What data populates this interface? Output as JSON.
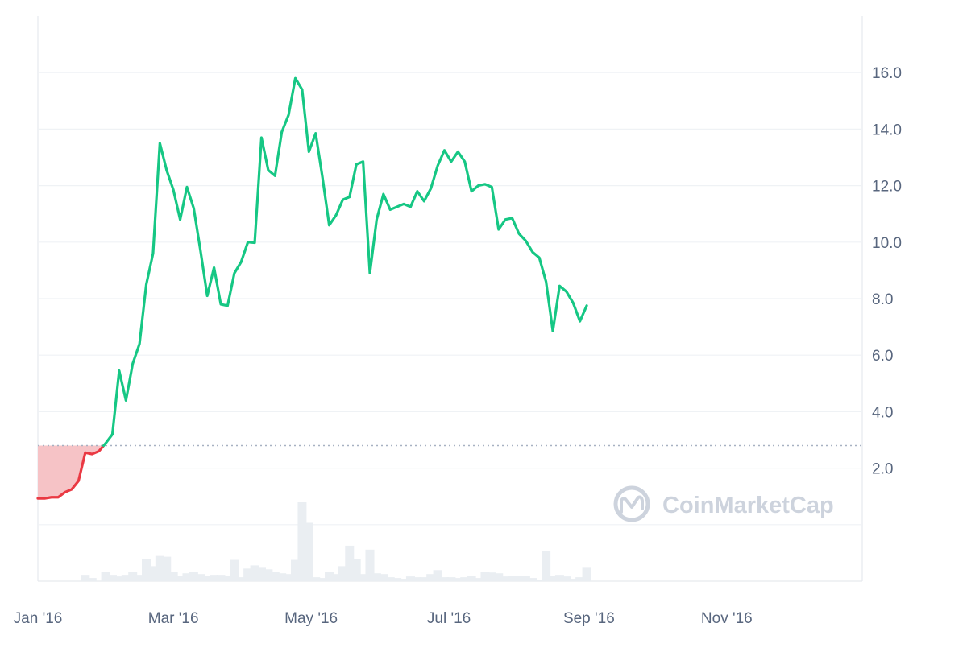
{
  "chart_data": {
    "type": "line",
    "colors": {
      "up": "#16c784",
      "down": "#ea3943",
      "down_fill": "#f6c3c6",
      "volume": "#eaeef2",
      "baseline": "#a7b1c2"
    },
    "y_ticks": [
      "2.0",
      "4.0",
      "6.0",
      "8.0",
      "10.0",
      "12.0",
      "14.0",
      "16.0"
    ],
    "ylim": [
      -2.0,
      18.0
    ],
    "x_ticks": [
      {
        "value": "2016-01-01",
        "label": "Jan '16"
      },
      {
        "value": "2016-03-01",
        "label": "Mar '16"
      },
      {
        "value": "2016-05-01",
        "label": "May '16"
      },
      {
        "value": "2016-07-01",
        "label": "Jul '16"
      },
      {
        "value": "2016-09-01",
        "label": "Sep '16"
      },
      {
        "value": "2016-11-01",
        "label": "Nov '16"
      }
    ],
    "xlim": [
      "2016-01-01",
      "2016-12-31"
    ],
    "baseline_value": 2.8,
    "grid": true,
    "price_series": [
      [
        "2016-01-01",
        0.93
      ],
      [
        "2016-01-04",
        0.93
      ],
      [
        "2016-01-07",
        0.97
      ],
      [
        "2016-01-10",
        0.97
      ],
      [
        "2016-01-13",
        1.15
      ],
      [
        "2016-01-16",
        1.25
      ],
      [
        "2016-01-19",
        1.55
      ],
      [
        "2016-01-22",
        2.55
      ],
      [
        "2016-01-25",
        2.5
      ],
      [
        "2016-01-28",
        2.6
      ],
      [
        "2016-01-31",
        2.88
      ],
      [
        "2016-02-03",
        3.2
      ],
      [
        "2016-02-06",
        5.45
      ],
      [
        "2016-02-09",
        4.4
      ],
      [
        "2016-02-12",
        5.7
      ],
      [
        "2016-02-15",
        6.4
      ],
      [
        "2016-02-18",
        8.5
      ],
      [
        "2016-02-21",
        9.6
      ],
      [
        "2016-02-24",
        13.5
      ],
      [
        "2016-02-27",
        12.55
      ],
      [
        "2016-03-01",
        11.85
      ],
      [
        "2016-03-04",
        10.8
      ],
      [
        "2016-03-07",
        11.95
      ],
      [
        "2016-03-10",
        11.2
      ],
      [
        "2016-03-13",
        9.7
      ],
      [
        "2016-03-16",
        8.1
      ],
      [
        "2016-03-19",
        9.1
      ],
      [
        "2016-03-22",
        7.8
      ],
      [
        "2016-03-25",
        7.75
      ],
      [
        "2016-03-28",
        8.9
      ],
      [
        "2016-03-31",
        9.3
      ],
      [
        "2016-04-03",
        10.0
      ],
      [
        "2016-04-06",
        9.98
      ],
      [
        "2016-04-09",
        13.7
      ],
      [
        "2016-04-12",
        12.55
      ],
      [
        "2016-04-15",
        12.35
      ],
      [
        "2016-04-18",
        13.9
      ],
      [
        "2016-04-21",
        14.5
      ],
      [
        "2016-04-24",
        15.8
      ],
      [
        "2016-04-27",
        15.4
      ],
      [
        "2016-04-30",
        13.2
      ],
      [
        "2016-05-03",
        13.85
      ],
      [
        "2016-05-06",
        12.3
      ],
      [
        "2016-05-09",
        10.6
      ],
      [
        "2016-05-12",
        10.95
      ],
      [
        "2016-05-15",
        11.5
      ],
      [
        "2016-05-18",
        11.6
      ],
      [
        "2016-05-21",
        12.75
      ],
      [
        "2016-05-24",
        12.85
      ],
      [
        "2016-05-27",
        8.9
      ],
      [
        "2016-05-30",
        10.8
      ],
      [
        "2016-06-02",
        11.7
      ],
      [
        "2016-06-05",
        11.15
      ],
      [
        "2016-06-08",
        11.25
      ],
      [
        "2016-06-11",
        11.35
      ],
      [
        "2016-06-14",
        11.25
      ],
      [
        "2016-06-17",
        11.8
      ],
      [
        "2016-06-20",
        11.45
      ],
      [
        "2016-06-23",
        11.9
      ],
      [
        "2016-06-26",
        12.7
      ],
      [
        "2016-06-29",
        13.25
      ],
      [
        "2016-07-02",
        12.85
      ],
      [
        "2016-07-05",
        13.2
      ],
      [
        "2016-07-08",
        12.85
      ],
      [
        "2016-07-11",
        11.8
      ],
      [
        "2016-07-14",
        12.0
      ],
      [
        "2016-07-17",
        12.05
      ],
      [
        "2016-07-20",
        11.95
      ],
      [
        "2016-07-23",
        10.45
      ],
      [
        "2016-07-26",
        10.8
      ],
      [
        "2016-07-29",
        10.85
      ],
      [
        "2016-08-01",
        10.3
      ],
      [
        "2016-08-04",
        10.05
      ],
      [
        "2016-08-07",
        9.65
      ],
      [
        "2016-08-10",
        9.45
      ],
      [
        "2016-08-13",
        8.6
      ],
      [
        "2016-08-16",
        6.85
      ],
      [
        "2016-08-19",
        8.45
      ],
      [
        "2016-08-22",
        8.25
      ],
      [
        "2016-08-25",
        7.85
      ],
      [
        "2016-08-28",
        7.2
      ],
      [
        "2016-08-31",
        7.75
      ]
    ],
    "volume_series": [
      [
        "2016-01-01",
        0.0
      ],
      [
        "2016-01-04",
        0.0
      ],
      [
        "2016-01-07",
        0.0
      ],
      [
        "2016-01-10",
        0.0
      ],
      [
        "2016-01-13",
        0.0
      ],
      [
        "2016-01-16",
        0.0
      ],
      [
        "2016-01-19",
        0.0
      ],
      [
        "2016-01-22",
        0.08
      ],
      [
        "2016-01-25",
        0.04
      ],
      [
        "2016-01-28",
        0.0
      ],
      [
        "2016-01-31",
        0.12
      ],
      [
        "2016-02-03",
        0.08
      ],
      [
        "2016-02-06",
        0.06
      ],
      [
        "2016-02-09",
        0.08
      ],
      [
        "2016-02-12",
        0.12
      ],
      [
        "2016-02-15",
        0.08
      ],
      [
        "2016-02-18",
        0.28
      ],
      [
        "2016-02-21",
        0.19
      ],
      [
        "2016-02-24",
        0.32
      ],
      [
        "2016-02-27",
        0.31
      ],
      [
        "2016-03-01",
        0.12
      ],
      [
        "2016-03-04",
        0.07
      ],
      [
        "2016-03-07",
        0.1
      ],
      [
        "2016-03-10",
        0.12
      ],
      [
        "2016-03-13",
        0.09
      ],
      [
        "2016-03-16",
        0.07
      ],
      [
        "2016-03-19",
        0.08
      ],
      [
        "2016-03-22",
        0.08
      ],
      [
        "2016-03-25",
        0.07
      ],
      [
        "2016-03-28",
        0.27
      ],
      [
        "2016-03-31",
        0.05
      ],
      [
        "2016-04-03",
        0.16
      ],
      [
        "2016-04-06",
        0.2
      ],
      [
        "2016-04-09",
        0.18
      ],
      [
        "2016-04-12",
        0.15
      ],
      [
        "2016-04-15",
        0.12
      ],
      [
        "2016-04-18",
        0.1
      ],
      [
        "2016-04-21",
        0.09
      ],
      [
        "2016-04-24",
        0.27
      ],
      [
        "2016-04-27",
        1.0
      ],
      [
        "2016-04-30",
        0.74
      ],
      [
        "2016-05-03",
        0.05
      ],
      [
        "2016-05-06",
        0.04
      ],
      [
        "2016-05-09",
        0.12
      ],
      [
        "2016-05-12",
        0.09
      ],
      [
        "2016-05-15",
        0.19
      ],
      [
        "2016-05-18",
        0.45
      ],
      [
        "2016-05-21",
        0.28
      ],
      [
        "2016-05-24",
        0.09
      ],
      [
        "2016-05-27",
        0.4
      ],
      [
        "2016-05-30",
        0.1
      ],
      [
        "2016-06-02",
        0.09
      ],
      [
        "2016-06-05",
        0.05
      ],
      [
        "2016-06-08",
        0.04
      ],
      [
        "2016-06-11",
        0.03
      ],
      [
        "2016-06-14",
        0.06
      ],
      [
        "2016-06-17",
        0.05
      ],
      [
        "2016-06-20",
        0.05
      ],
      [
        "2016-06-23",
        0.09
      ],
      [
        "2016-06-26",
        0.14
      ],
      [
        "2016-06-29",
        0.05
      ],
      [
        "2016-07-02",
        0.05
      ],
      [
        "2016-07-05",
        0.04
      ],
      [
        "2016-07-08",
        0.05
      ],
      [
        "2016-07-11",
        0.07
      ],
      [
        "2016-07-14",
        0.04
      ],
      [
        "2016-07-17",
        0.12
      ],
      [
        "2016-07-20",
        0.11
      ],
      [
        "2016-07-23",
        0.1
      ],
      [
        "2016-07-26",
        0.06
      ],
      [
        "2016-07-29",
        0.07
      ],
      [
        "2016-08-01",
        0.07
      ],
      [
        "2016-08-04",
        0.07
      ],
      [
        "2016-08-07",
        0.04
      ],
      [
        "2016-08-10",
        0.02
      ],
      [
        "2016-08-13",
        0.38
      ],
      [
        "2016-08-16",
        0.07
      ],
      [
        "2016-08-19",
        0.08
      ],
      [
        "2016-08-22",
        0.06
      ],
      [
        "2016-08-25",
        0.03
      ],
      [
        "2016-08-28",
        0.05
      ],
      [
        "2016-08-31",
        0.18
      ]
    ],
    "watermark": "CoinMarketCap"
  }
}
